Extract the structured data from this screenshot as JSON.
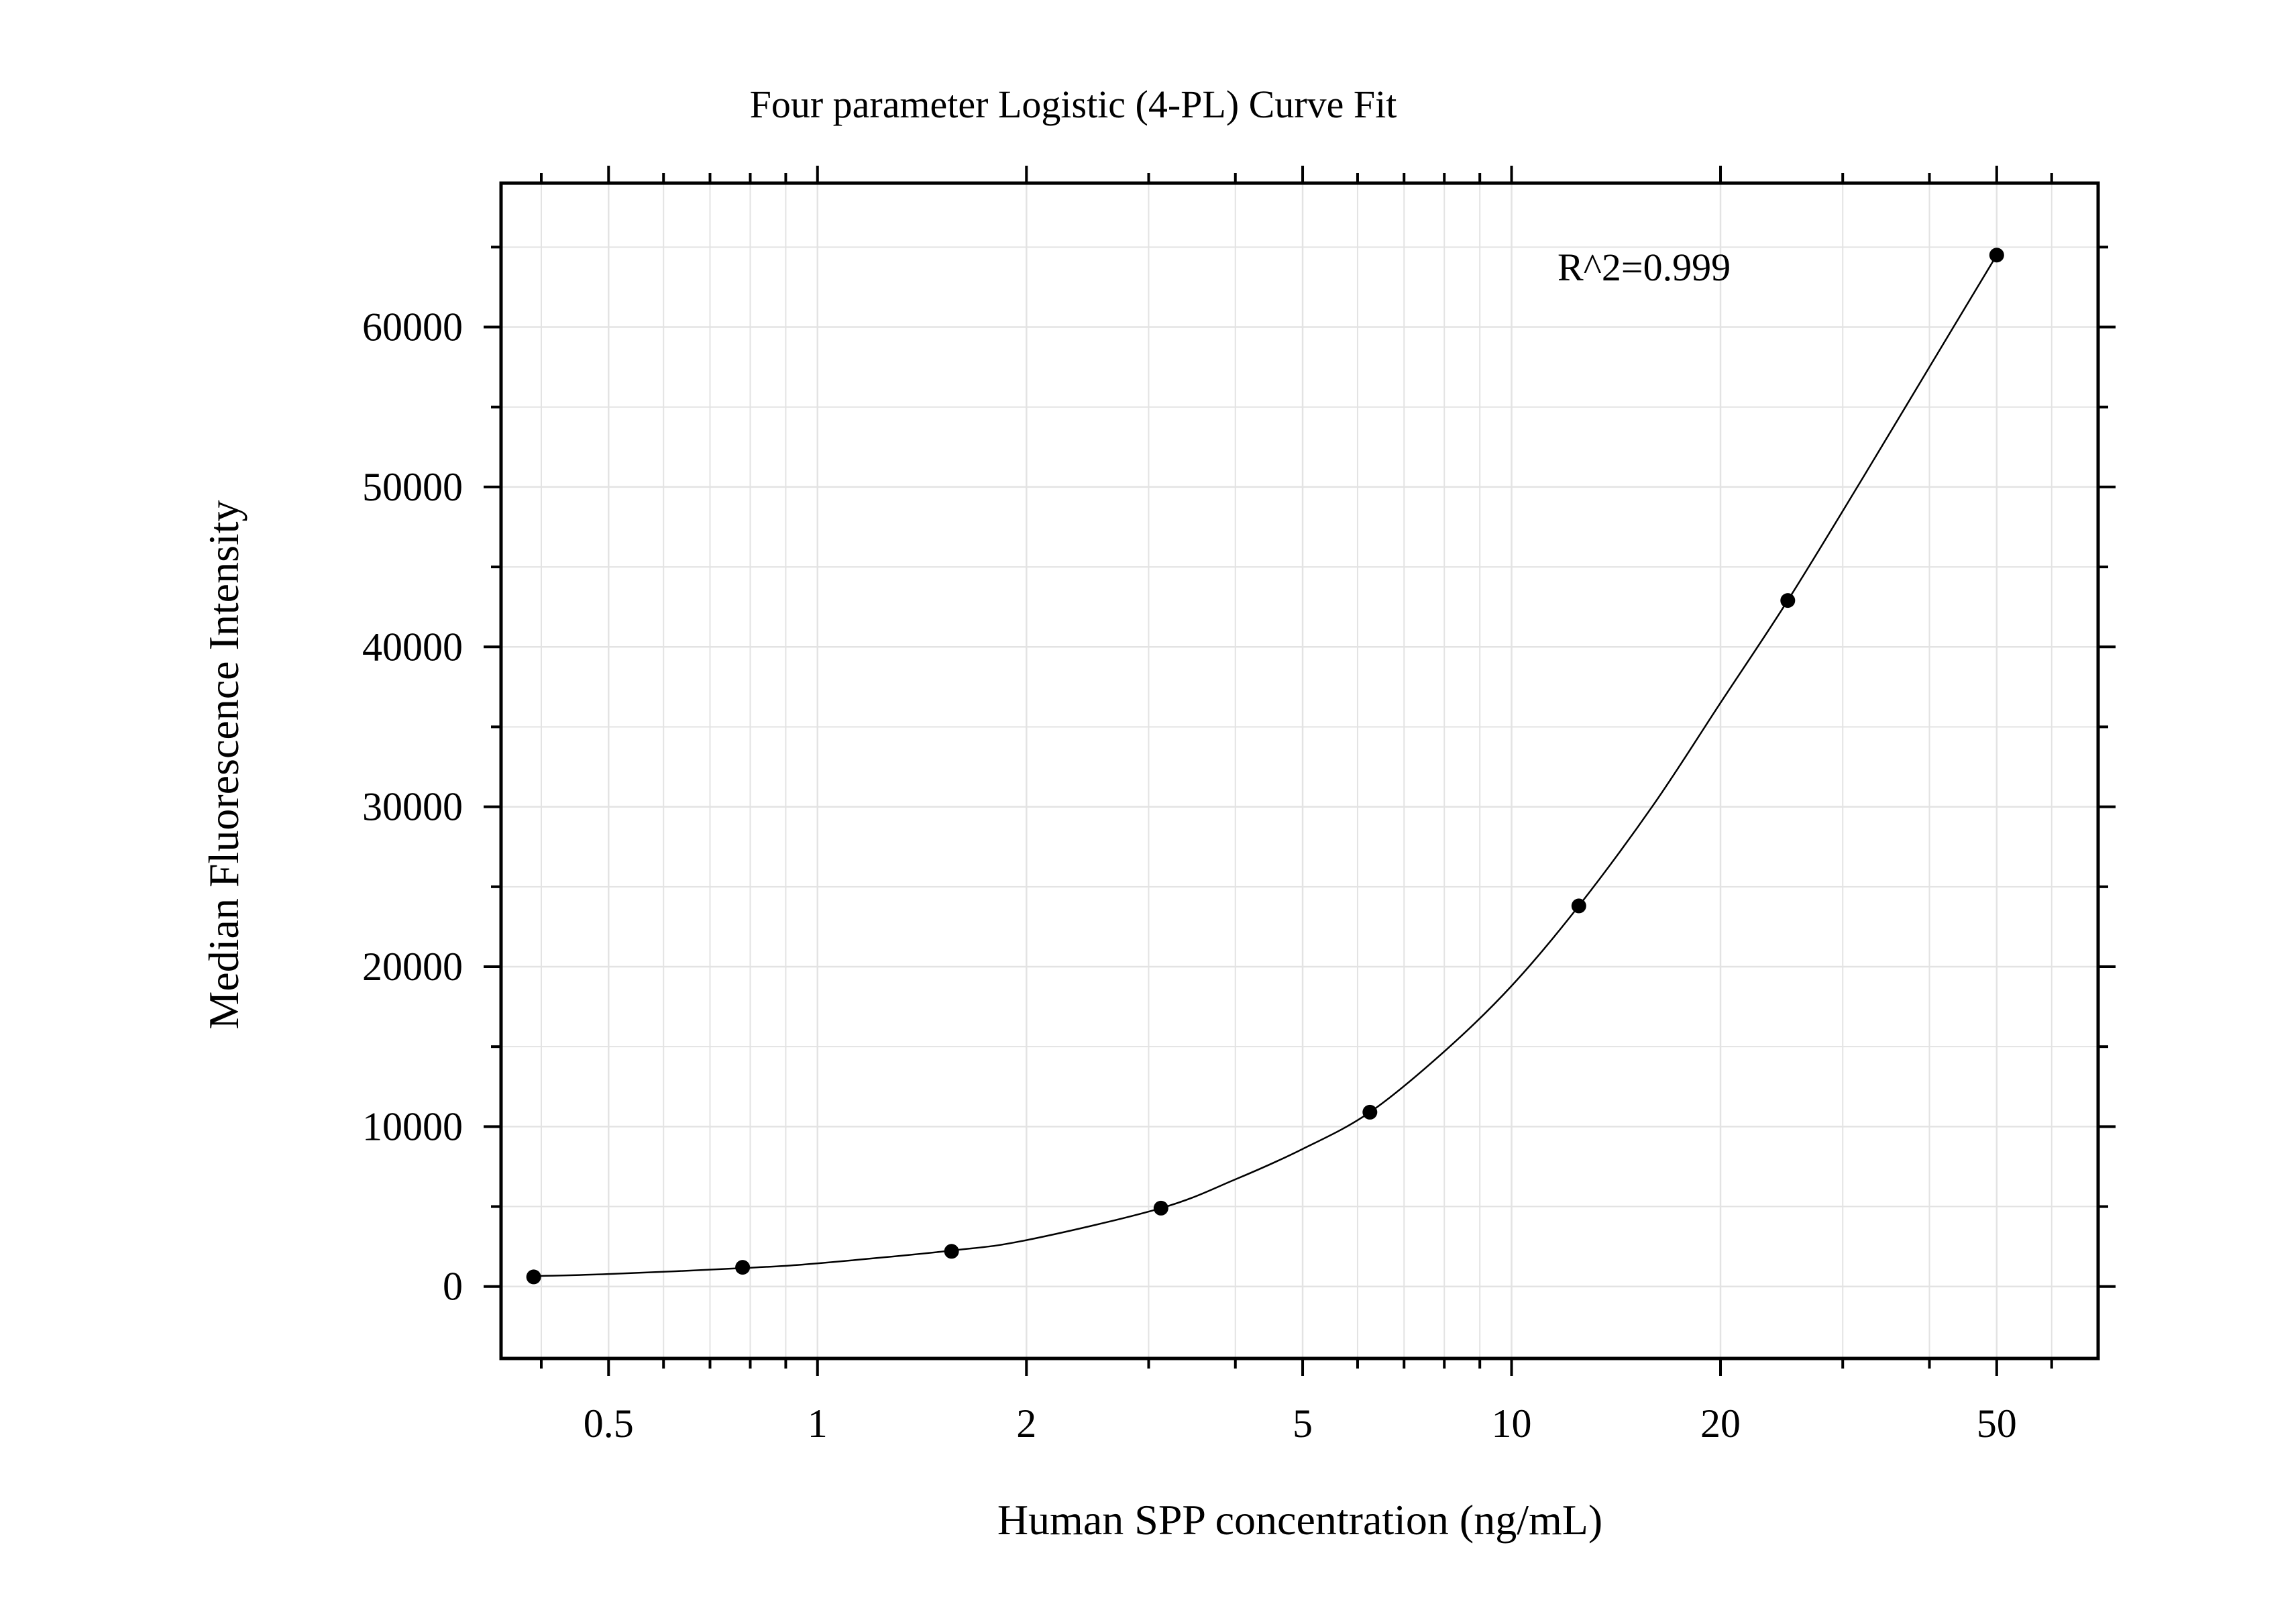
{
  "chart_data": {
    "type": "scatter",
    "title": "Four parameter Logistic (4-PL) Curve Fit",
    "xlabel": "Human SPP concentration (ng/mL)",
    "ylabel": "Median Fluorescence Intensity",
    "x_scale": "log",
    "xlim": [
      0.35,
      70
    ],
    "ylim": [
      -4500,
      69000
    ],
    "x_ticks": [
      0.5,
      1,
      2,
      5,
      10,
      20,
      50
    ],
    "x_tick_labels": [
      "0.5",
      "1",
      "2",
      "5",
      "10",
      "20",
      "50"
    ],
    "y_ticks": [
      0,
      10000,
      20000,
      30000,
      40000,
      50000,
      60000
    ],
    "y_tick_labels": [
      "0",
      "10000",
      "20000",
      "30000",
      "40000",
      "50000",
      "60000"
    ],
    "grid": true,
    "annotation": "R^2=0.999",
    "series": [
      {
        "x": [
          0.39,
          0.78,
          1.56,
          3.125,
          6.25,
          12.5,
          25,
          50
        ],
        "y": [
          600,
          1200,
          2200,
          4900,
          10900,
          23800,
          42900,
          64500
        ],
        "color": "#000000"
      }
    ],
    "fit_curve": {
      "x": [
        0.39,
        0.5,
        0.78,
        1.0,
        1.56,
        2.0,
        3.125,
        4.0,
        5.0,
        6.25,
        8.0,
        10.0,
        12.5,
        16.0,
        20.0,
        25.0,
        32.0,
        40.0,
        50.0
      ],
      "y": [
        650,
        780,
        1150,
        1450,
        2250,
        2900,
        4900,
        6700,
        8600,
        10900,
        14700,
        18800,
        23800,
        30100,
        36500,
        42900,
        50500,
        57500,
        64500
      ],
      "color": "#000000"
    }
  }
}
